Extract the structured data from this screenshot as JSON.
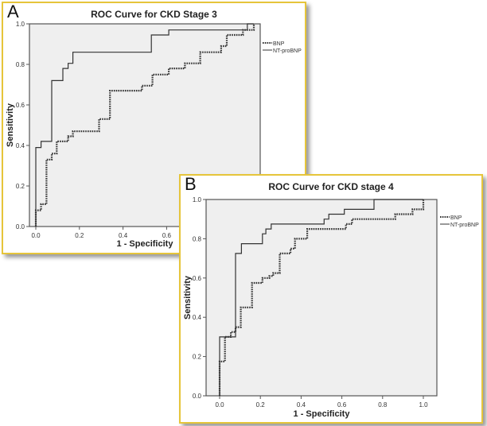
{
  "chart_data": [
    {
      "panel_label": "A",
      "type": "line",
      "title": "ROC Curve for CKD Stage 3",
      "xlabel": "1 - Specificity",
      "ylabel": "Sensitivity",
      "xlim": [
        0,
        1
      ],
      "ylim": [
        0,
        1
      ],
      "xticks": [
        "0.0",
        "0.2",
        "0.4",
        "0.6",
        "0.8",
        "1.0"
      ],
      "yticks": [
        "0.0",
        "0.2",
        "0.4",
        "0.6",
        "0.8",
        "1.0"
      ],
      "legend_position": "right",
      "series": [
        {
          "name": "BNP",
          "style": "dotted",
          "points": [
            [
              0,
              0
            ],
            [
              0,
              0.08
            ],
            [
              0.024,
              0.08
            ],
            [
              0.024,
              0.11
            ],
            [
              0.049,
              0.11
            ],
            [
              0.049,
              0.33
            ],
            [
              0.073,
              0.33
            ],
            [
              0.073,
              0.36
            ],
            [
              0.096,
              0.36
            ],
            [
              0.096,
              0.42
            ],
            [
              0.148,
              0.42
            ],
            [
              0.148,
              0.445
            ],
            [
              0.17,
              0.445
            ],
            [
              0.17,
              0.47
            ],
            [
              0.29,
              0.47
            ],
            [
              0.29,
              0.53
            ],
            [
              0.34,
              0.53
            ],
            [
              0.34,
              0.67
            ],
            [
              0.487,
              0.67
            ],
            [
              0.487,
              0.695
            ],
            [
              0.535,
              0.695
            ],
            [
              0.535,
              0.75
            ],
            [
              0.61,
              0.75
            ],
            [
              0.61,
              0.78
            ],
            [
              0.684,
              0.78
            ],
            [
              0.684,
              0.805
            ],
            [
              0.754,
              0.805
            ],
            [
              0.754,
              0.86
            ],
            [
              0.85,
              0.86
            ],
            [
              0.85,
              0.89
            ],
            [
              0.876,
              0.89
            ],
            [
              0.876,
              0.945
            ],
            [
              0.95,
              0.945
            ],
            [
              0.95,
              0.97
            ],
            [
              1,
              0.97
            ],
            [
              1,
              1
            ]
          ]
        },
        {
          "name": "NT-proBNP",
          "style": "solid",
          "points": [
            [
              0,
              0
            ],
            [
              0,
              0.39
            ],
            [
              0.024,
              0.39
            ],
            [
              0.024,
              0.42
            ],
            [
              0.073,
              0.42
            ],
            [
              0.073,
              0.72
            ],
            [
              0.124,
              0.72
            ],
            [
              0.124,
              0.78
            ],
            [
              0.148,
              0.78
            ],
            [
              0.148,
              0.805
            ],
            [
              0.17,
              0.805
            ],
            [
              0.17,
              0.86
            ],
            [
              0.53,
              0.86
            ],
            [
              0.53,
              0.945
            ],
            [
              0.61,
              0.945
            ],
            [
              0.61,
              0.97
            ],
            [
              0.97,
              0.97
            ],
            [
              0.97,
              1
            ],
            [
              1,
              1
            ]
          ]
        }
      ]
    },
    {
      "panel_label": "B",
      "type": "line",
      "title": "ROC Curve for CKD stage 4",
      "xlabel": "1 - Specificity",
      "ylabel": "Sensitivity",
      "xlim": [
        0,
        1
      ],
      "ylim": [
        0,
        1
      ],
      "xticks": [
        "0.0",
        "0.2",
        "0.4",
        "0.6",
        "0.8",
        "1.0"
      ],
      "yticks": [
        "0.0",
        "0.2",
        "0.4",
        "0.6",
        "0.8",
        "1.0"
      ],
      "legend_position": "right",
      "series": [
        {
          "name": "BNP",
          "style": "dotted",
          "points": [
            [
              0,
              0
            ],
            [
              0,
              0.175
            ],
            [
              0.026,
              0.175
            ],
            [
              0.026,
              0.3
            ],
            [
              0.055,
              0.3
            ],
            [
              0.055,
              0.325
            ],
            [
              0.078,
              0.325
            ],
            [
              0.078,
              0.35
            ],
            [
              0.104,
              0.35
            ],
            [
              0.104,
              0.45
            ],
            [
              0.159,
              0.45
            ],
            [
              0.159,
              0.575
            ],
            [
              0.21,
              0.575
            ],
            [
              0.21,
              0.6
            ],
            [
              0.244,
              0.6
            ],
            [
              0.244,
              0.61
            ],
            [
              0.263,
              0.61
            ],
            [
              0.263,
              0.625
            ],
            [
              0.295,
              0.625
            ],
            [
              0.295,
              0.725
            ],
            [
              0.348,
              0.725
            ],
            [
              0.348,
              0.75
            ],
            [
              0.37,
              0.75
            ],
            [
              0.37,
              0.8
            ],
            [
              0.43,
              0.8
            ],
            [
              0.43,
              0.85
            ],
            [
              0.62,
              0.85
            ],
            [
              0.62,
              0.875
            ],
            [
              0.65,
              0.875
            ],
            [
              0.65,
              0.9
            ],
            [
              0.862,
              0.9
            ],
            [
              0.862,
              0.925
            ],
            [
              0.947,
              0.925
            ],
            [
              0.947,
              0.95
            ],
            [
              1,
              0.95
            ],
            [
              1,
              1
            ]
          ]
        },
        {
          "name": "NT-proBNP",
          "style": "solid",
          "points": [
            [
              0,
              0
            ],
            [
              0,
              0.3
            ],
            [
              0.078,
              0.3
            ],
            [
              0.078,
              0.725
            ],
            [
              0.107,
              0.725
            ],
            [
              0.107,
              0.775
            ],
            [
              0.21,
              0.775
            ],
            [
              0.21,
              0.825
            ],
            [
              0.227,
              0.825
            ],
            [
              0.227,
              0.85
            ],
            [
              0.253,
              0.85
            ],
            [
              0.253,
              0.875
            ],
            [
              0.513,
              0.875
            ],
            [
              0.513,
              0.9
            ],
            [
              0.536,
              0.9
            ],
            [
              0.536,
              0.925
            ],
            [
              0.612,
              0.925
            ],
            [
              0.612,
              0.95
            ],
            [
              0.758,
              0.95
            ],
            [
              0.758,
              1
            ],
            [
              1,
              1
            ]
          ]
        }
      ]
    }
  ]
}
